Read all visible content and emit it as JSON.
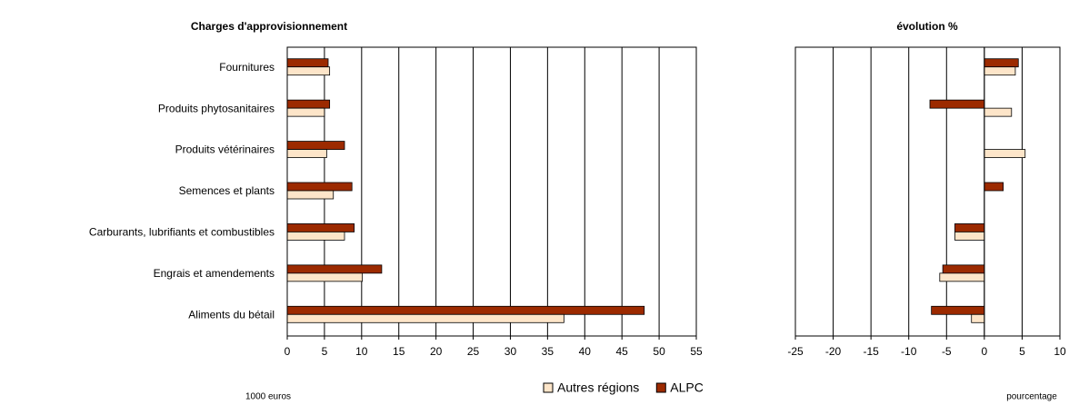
{
  "chart_data": [
    {
      "type": "bar",
      "orientation": "horizontal",
      "title": "Charges d'approvisionnement",
      "xlabel": "1000 euros",
      "categories": [
        "Fournitures",
        "Produits phytosanitaires",
        "Produits vétérinaires",
        "Semences et plants",
        "Carburants, lubrifiants et combustibles",
        "Engrais et amendements",
        "Aliments du bétail"
      ],
      "series": [
        {
          "name": "Autres régions",
          "color": "#fde5c9",
          "values": [
            5.7,
            5.0,
            5.3,
            6.2,
            7.7,
            10.1,
            37.2
          ]
        },
        {
          "name": "ALPC",
          "color": "#9c2a00",
          "values": [
            5.5,
            5.7,
            7.7,
            8.7,
            9.0,
            12.7,
            48.0
          ]
        }
      ],
      "xlim": [
        0,
        55
      ],
      "xticks": [
        0,
        5,
        10,
        15,
        20,
        25,
        30,
        35,
        40,
        45,
        50,
        55
      ],
      "grid": true
    },
    {
      "type": "bar",
      "orientation": "horizontal",
      "title": "évolution %",
      "xlabel": "pourcentage",
      "series": [
        {
          "name": "Autres régions",
          "color": "#fde5c9",
          "values": [
            4.1,
            3.6,
            5.4,
            0,
            -3.9,
            -5.9,
            -1.7
          ]
        },
        {
          "name": "ALPC",
          "color": "#9c2a00",
          "values": [
            4.5,
            -7.2,
            0,
            2.5,
            -3.9,
            -5.5,
            -7.0
          ]
        }
      ],
      "xlim": [
        -25,
        10
      ],
      "xticks": [
        -25,
        -20,
        -15,
        -10,
        -5,
        0,
        5,
        10
      ],
      "grid": true
    }
  ]
}
